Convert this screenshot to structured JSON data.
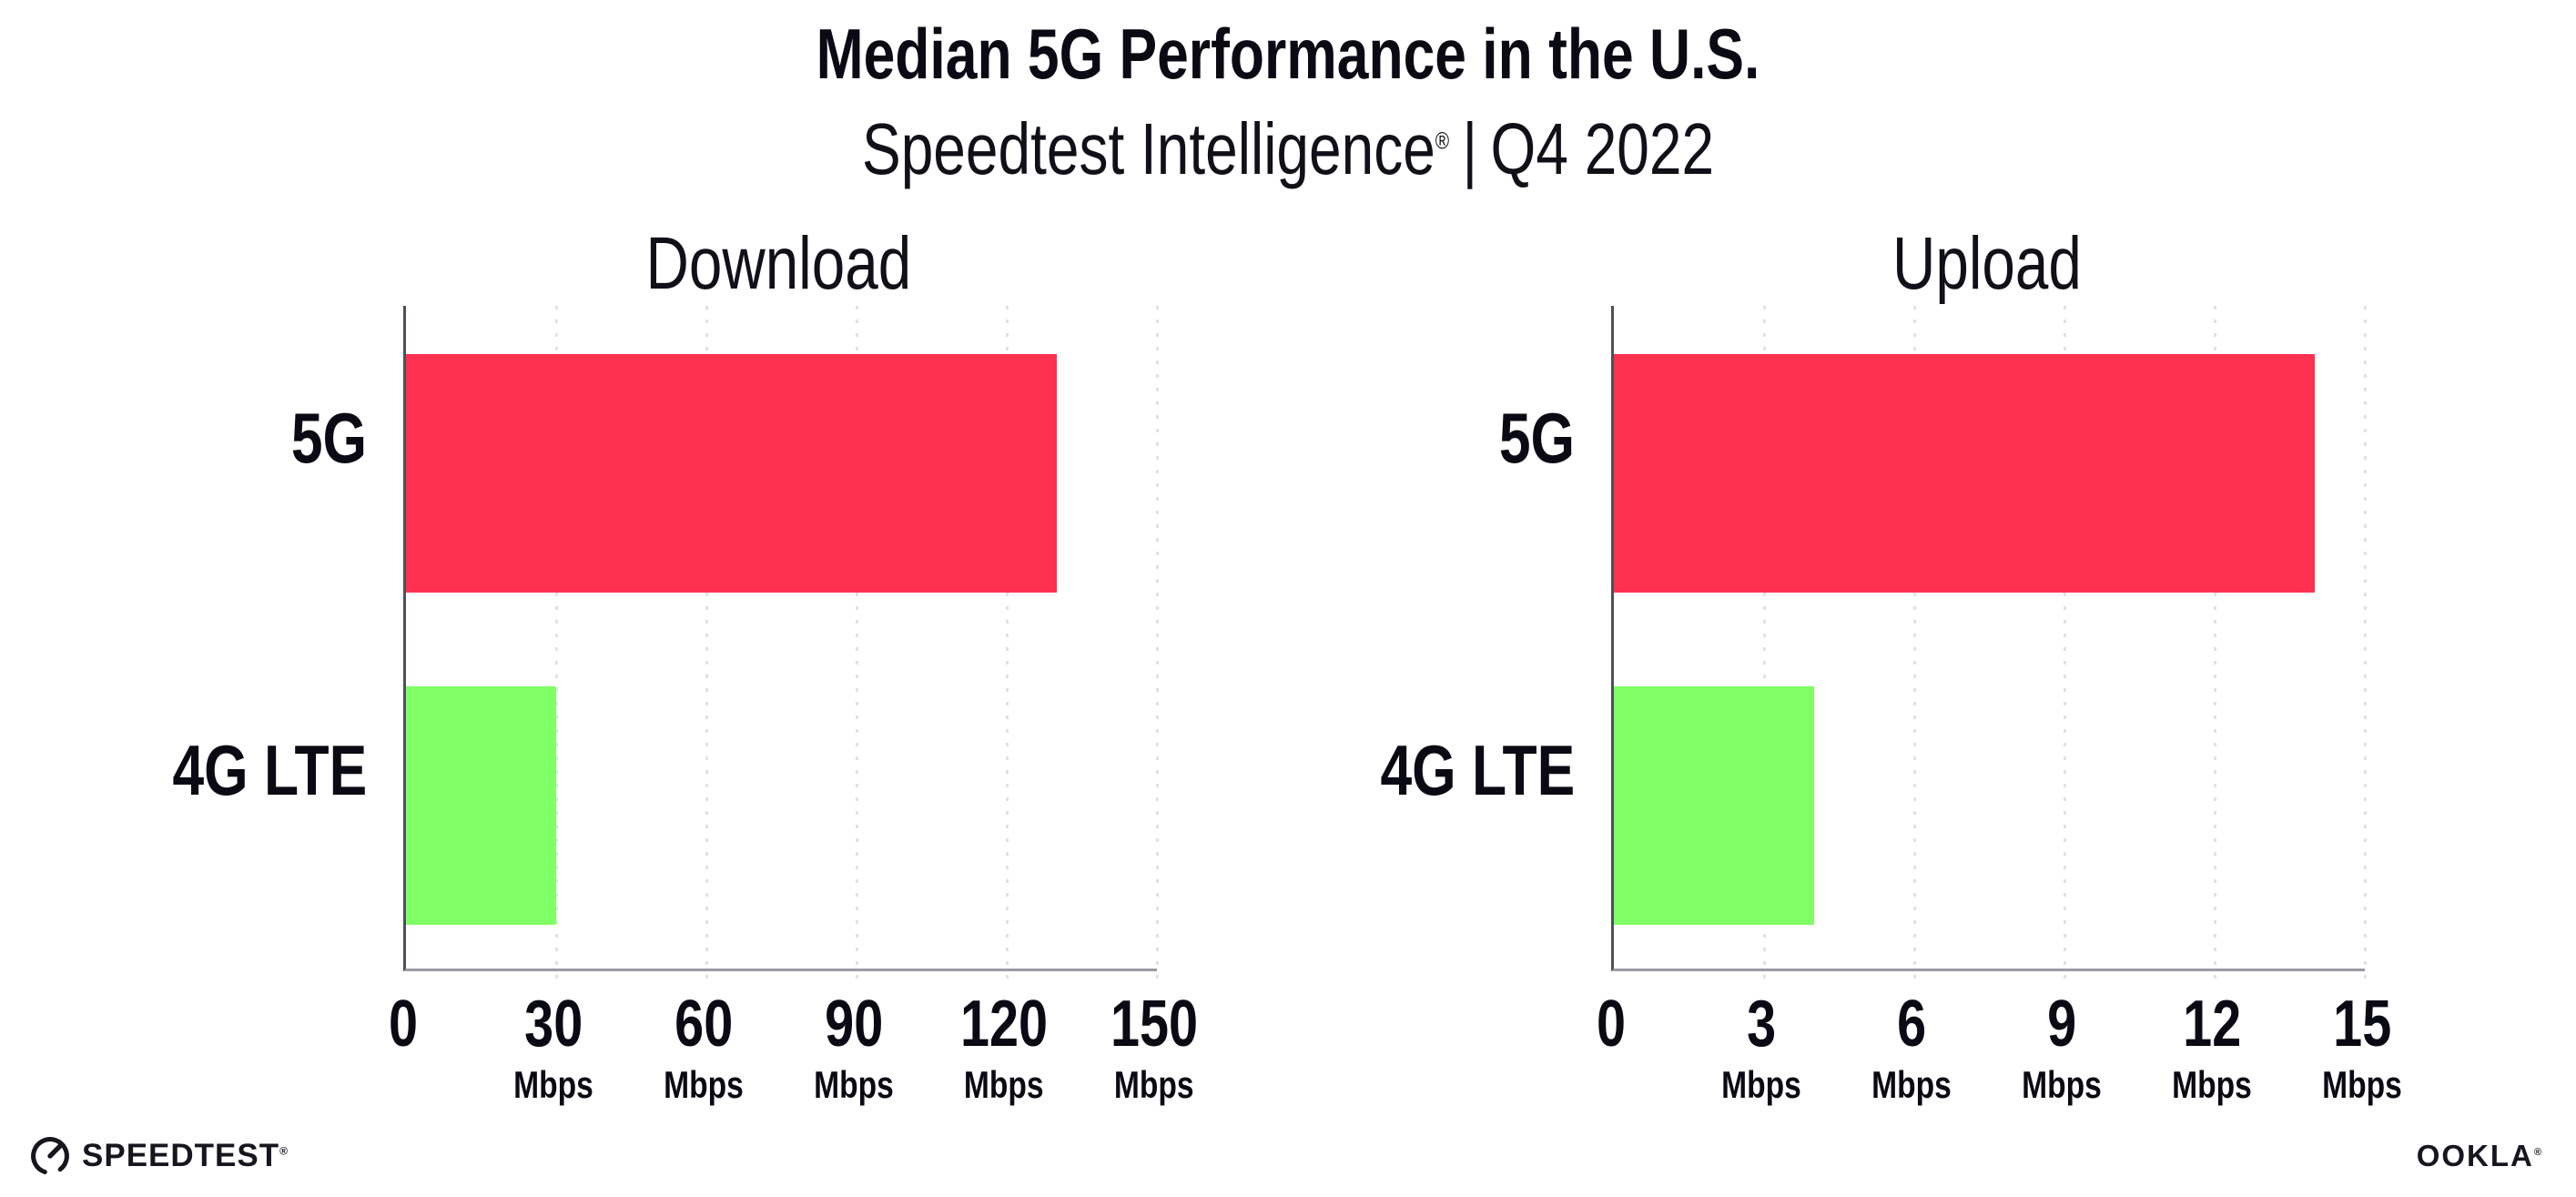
{
  "page_title": "Median 5G Performance in the U.S.",
  "subtitle": {
    "brand": "Speedtest Intelligence",
    "registered_mark": "®",
    "separator": "|",
    "period": "Q4 2022"
  },
  "colors": {
    "bar_5g": "#FF3050",
    "bar_4g_lte": "#80FF66",
    "x_axis": "#9B9BA3",
    "y_axis": "#4F4F5A",
    "grid_dot": "#E1E1ED",
    "text": "#0A0A14"
  },
  "chart_data": [
    {
      "type": "bar",
      "orientation": "horizontal",
      "title": "Download",
      "categories": [
        "5G",
        "4G LTE"
      ],
      "values": [
        130,
        30
      ],
      "unit": "Mbps",
      "xlim": [
        0,
        150
      ],
      "xticks": [
        0,
        30,
        60,
        90,
        120,
        150
      ],
      "grid": "dotted-vertical",
      "legend": "none",
      "colors": [
        "#FF3050",
        "#80FF66"
      ]
    },
    {
      "type": "bar",
      "orientation": "horizontal",
      "title": "Upload",
      "categories": [
        "5G",
        "4G LTE"
      ],
      "values": [
        14,
        4
      ],
      "unit": "Mbps",
      "xlim": [
        0,
        15
      ],
      "xticks": [
        0,
        3,
        6,
        9,
        12,
        15
      ],
      "grid": "dotted-vertical",
      "legend": "none",
      "colors": [
        "#FF3050",
        "#80FF66"
      ]
    }
  ],
  "footer": {
    "speedtest_label": "SPEEDTEST",
    "speedtest_mark": "®",
    "ookla_label": "OOKLA",
    "ookla_mark": "®"
  }
}
